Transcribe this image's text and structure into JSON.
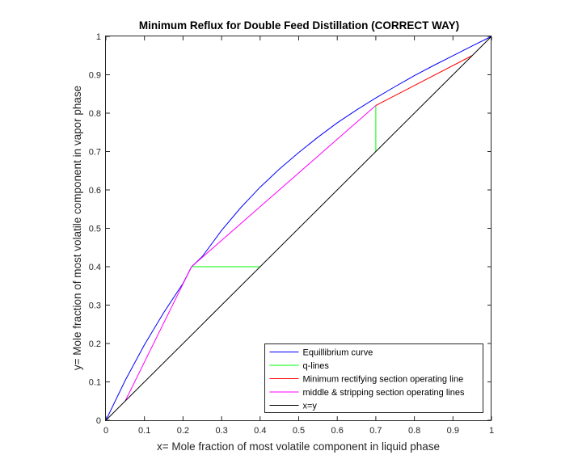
{
  "chart_data": {
    "type": "line",
    "title": "Minimum Reflux for Double Feed Distillation (CORRECT WAY)",
    "xlabel": "x= Mole fraction of most volatile component in liquid phase",
    "ylabel": "y= Mole fraction of most volatile component in vapor phase",
    "xlim": [
      0,
      1
    ],
    "ylim": [
      0,
      1
    ],
    "xticks": [
      "0",
      "0.1",
      "0.2",
      "0.3",
      "0.4",
      "0.5",
      "0.6",
      "0.7",
      "0.8",
      "0.9",
      "1"
    ],
    "yticks": [
      "0",
      "0.1",
      "0.2",
      "0.3",
      "0.4",
      "0.5",
      "0.6",
      "0.7",
      "0.8",
      "0.9",
      "1"
    ],
    "grid": false,
    "legend_position": "bottom-right",
    "series": [
      {
        "name": "Equillibrium curve",
        "color": "#0000ff",
        "points": [
          [
            0,
            0
          ],
          [
            0.05,
            0.1037
          ],
          [
            0.1,
            0.1969
          ],
          [
            0.15,
            0.2806
          ],
          [
            0.2,
            0.3566
          ],
          [
            0.222,
            0.3995
          ],
          [
            0.25,
            0.4265
          ],
          [
            0.3,
            0.4947
          ],
          [
            0.35,
            0.5542
          ],
          [
            0.4,
            0.6072
          ],
          [
            0.45,
            0.6545
          ],
          [
            0.5,
            0.6974
          ],
          [
            0.55,
            0.7375
          ],
          [
            0.6,
            0.7748
          ],
          [
            0.65,
            0.8083
          ],
          [
            0.7,
            0.8397
          ],
          [
            0.75,
            0.8692
          ],
          [
            0.8,
            0.8977
          ],
          [
            0.85,
            0.9242
          ],
          [
            0.9,
            0.9497
          ],
          [
            0.95,
            0.9751
          ],
          [
            1,
            1
          ]
        ]
      },
      {
        "name": "q-lines",
        "color": "#00ff00",
        "segments": [
          [
            [
              0.222,
              0.4
            ],
            [
              0.4,
              0.4
            ]
          ],
          [
            [
              0.7,
              0.7
            ],
            [
              0.7,
              0.82
            ]
          ]
        ]
      },
      {
        "name": "Minimum rectifying section operating line",
        "color": "#ff0000",
        "points": [
          [
            0.7,
            0.82
          ],
          [
            0.95,
            0.95
          ]
        ]
      },
      {
        "name": "middle & stripping section operating lines",
        "color": "#ff00ff",
        "points": [
          [
            0.05,
            0.05
          ],
          [
            0.222,
            0.4
          ],
          [
            0.7,
            0.82
          ]
        ]
      },
      {
        "name": "x=y",
        "color": "#000000",
        "points": [
          [
            0,
            0
          ],
          [
            1,
            1
          ]
        ]
      }
    ]
  }
}
